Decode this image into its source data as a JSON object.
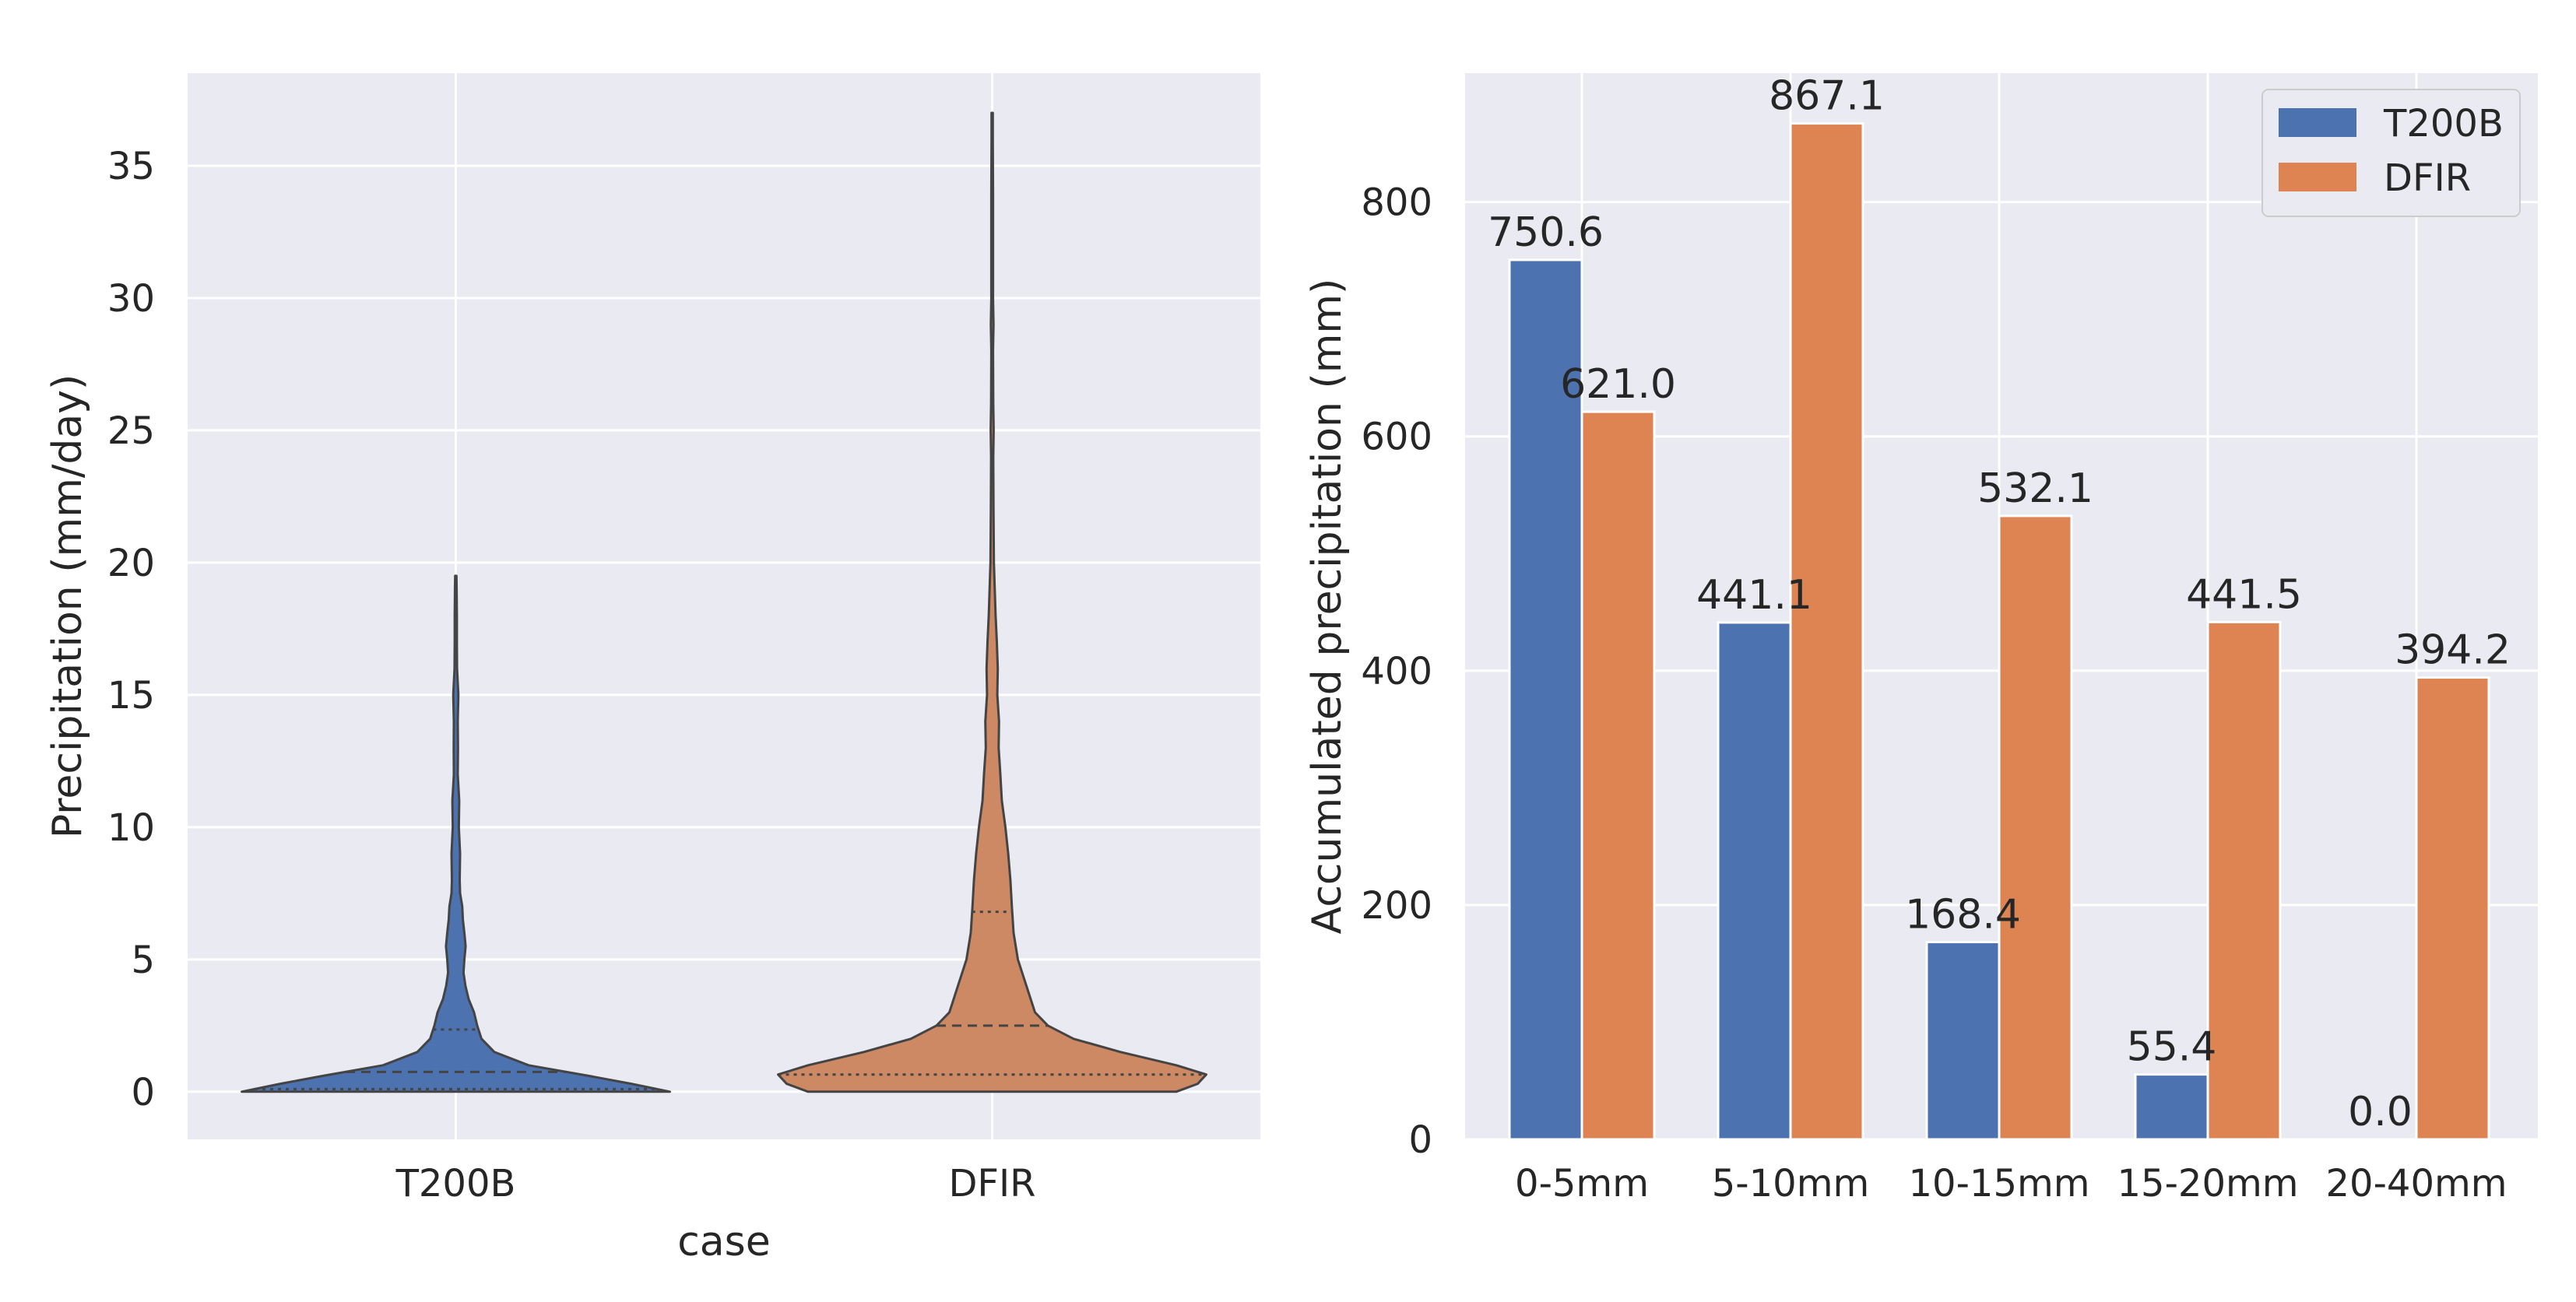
{
  "colors": {
    "t200b": "#4c72b0",
    "dfir": "#dd8452",
    "dfir_violin": "#cc8963"
  },
  "chart_data": [
    {
      "type": "violin",
      "title": "",
      "xlabel": "case",
      "ylabel": "Precipitation (mm/day)",
      "ylim": [
        -1.8,
        38.5
      ],
      "yticks": [
        0,
        5,
        10,
        15,
        20,
        25,
        30,
        35
      ],
      "grid": true,
      "categories": [
        "T200B",
        "DFIR"
      ],
      "series": [
        {
          "name": "T200B",
          "min": 0.0,
          "max": 19.5,
          "quartiles": [
            0.1,
            0.75,
            2.35
          ],
          "density": [
            [
              0,
              1.0
            ],
            [
              0.3,
              0.82
            ],
            [
              0.6,
              0.62
            ],
            [
              1,
              0.34
            ],
            [
              1.5,
              0.18
            ],
            [
              2,
              0.12
            ],
            [
              2.5,
              0.1
            ],
            [
              3,
              0.085
            ],
            [
              3.5,
              0.06
            ],
            [
              4,
              0.045
            ],
            [
              4.5,
              0.036
            ],
            [
              5,
              0.04
            ],
            [
              5.5,
              0.046
            ],
            [
              6,
              0.04
            ],
            [
              6.5,
              0.033
            ],
            [
              7,
              0.03
            ],
            [
              7.5,
              0.02
            ],
            [
              8,
              0.018
            ],
            [
              9,
              0.02
            ],
            [
              10,
              0.014
            ],
            [
              11,
              0.016
            ],
            [
              12,
              0.009
            ],
            [
              13,
              0.01
            ],
            [
              14,
              0.009
            ],
            [
              15,
              0.012
            ],
            [
              16,
              0.006
            ],
            [
              17,
              0.005
            ],
            [
              18,
              0.005
            ],
            [
              19,
              0.004
            ],
            [
              19.5,
              0.003
            ]
          ]
        },
        {
          "name": "DFIR",
          "min": 0.0,
          "max": 37.0,
          "quartiles": [
            0.65,
            2.5,
            6.8
          ],
          "density": [
            [
              0,
              0.86
            ],
            [
              0.3,
              0.96
            ],
            [
              0.65,
              1.0
            ],
            [
              1,
              0.86
            ],
            [
              1.5,
              0.6
            ],
            [
              2,
              0.38
            ],
            [
              2.5,
              0.26
            ],
            [
              3,
              0.2
            ],
            [
              3.5,
              0.18
            ],
            [
              4,
              0.16
            ],
            [
              4.5,
              0.14
            ],
            [
              5,
              0.12
            ],
            [
              6,
              0.1
            ],
            [
              7,
              0.092
            ],
            [
              8,
              0.085
            ],
            [
              9,
              0.075
            ],
            [
              10,
              0.062
            ],
            [
              11,
              0.045
            ],
            [
              12,
              0.038
            ],
            [
              13,
              0.03
            ],
            [
              14,
              0.032
            ],
            [
              15,
              0.024
            ],
            [
              16,
              0.026
            ],
            [
              17,
              0.022
            ],
            [
              18,
              0.016
            ],
            [
              19,
              0.012
            ],
            [
              20,
              0.008
            ],
            [
              22,
              0.006
            ],
            [
              24,
              0.005
            ],
            [
              25,
              0.007
            ],
            [
              26,
              0.005
            ],
            [
              28,
              0.004
            ],
            [
              29,
              0.006
            ],
            [
              30,
              0.004
            ],
            [
              32,
              0.004
            ],
            [
              34,
              0.004
            ],
            [
              36,
              0.003
            ],
            [
              37,
              0.003
            ]
          ]
        }
      ]
    },
    {
      "type": "bar",
      "title": "",
      "xlabel": "",
      "ylabel": "Accumulated precipitation (mm)",
      "ylim": [
        0,
        910
      ],
      "yticks": [
        0,
        200,
        400,
        600,
        800
      ],
      "grid": true,
      "legend": "top-right",
      "categories": [
        "0-5mm",
        "5-10mm",
        "10-15mm",
        "15-20mm",
        "20-40mm"
      ],
      "series": [
        {
          "name": "T200B",
          "values": [
            750.6,
            441.1,
            168.4,
            55.4,
            0.0
          ],
          "labels": [
            "750.6",
            "441.1",
            "168.4",
            "55.4",
            "0.0"
          ]
        },
        {
          "name": "DFIR",
          "values": [
            621.0,
            867.1,
            532.1,
            441.5,
            394.2
          ],
          "labels": [
            "621.0",
            "867.1",
            "532.1",
            "441.5",
            "394.2"
          ]
        }
      ]
    }
  ]
}
